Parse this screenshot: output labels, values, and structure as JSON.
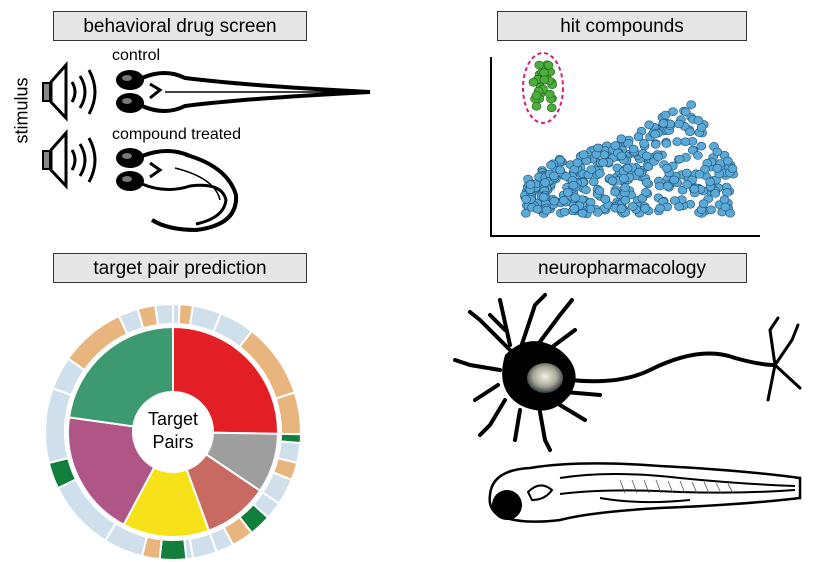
{
  "panels": {
    "behavioral": {
      "title": "behavioral drug screen",
      "stimulus_label": "stimulus",
      "control_label": "control",
      "treated_label": "compound treated"
    },
    "hits": {
      "title": "hit compounds"
    },
    "target_pairs": {
      "title": "target pair prediction",
      "center_label_line1": "Target",
      "center_label_line2": "Pairs"
    },
    "neuro": {
      "title": "neuropharmacology"
    }
  },
  "icons": [
    "speaker-icon",
    "zebrafish-larva-icon",
    "neuron-icon"
  ],
  "colors": {
    "title_box_bg": "#e6e6e6",
    "scatter_blue": "#5aa9d6",
    "scatter_green": "#4caf3c",
    "hit_ring": "#d81b7a",
    "wedge_red": "#e31e24",
    "wedge_teal": "#3d9970",
    "wedge_purple": "#b05687",
    "wedge_yellow": "#f7e21a",
    "wedge_salmon": "#c96a62",
    "wedge_gray": "#9e9e9e",
    "ring_lightblue": "#cfe0ec",
    "ring_tan": "#e8b57e",
    "ring_darkgreen": "#117e3b"
  }
}
